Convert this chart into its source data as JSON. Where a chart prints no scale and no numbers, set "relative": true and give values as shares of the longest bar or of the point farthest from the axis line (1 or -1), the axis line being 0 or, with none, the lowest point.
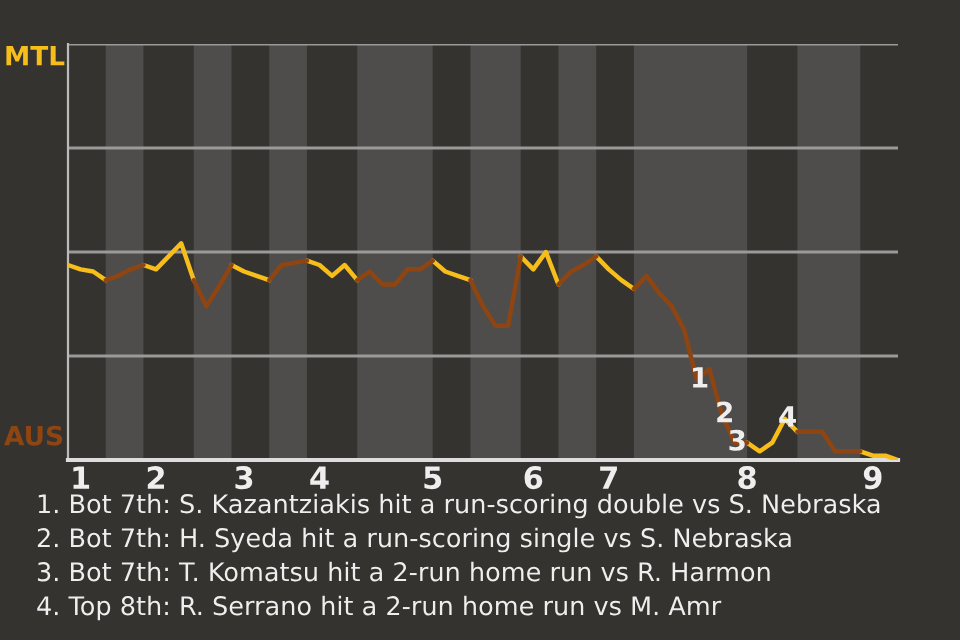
{
  "chart_data": {
    "type": "line",
    "relative": true,
    "categories": [
      null,
      "1",
      null,
      null,
      null,
      null,
      null,
      "2",
      null,
      null,
      null,
      null,
      null,
      null,
      "3",
      null,
      null,
      null,
      null,
      null,
      "4",
      null,
      null,
      null,
      null,
      null,
      null,
      null,
      null,
      "5",
      null,
      null,
      null,
      null,
      null,
      null,
      null,
      "6",
      null,
      null,
      null,
      null,
      null,
      "7",
      null,
      null,
      null,
      null,
      null,
      null,
      null,
      null,
      null,
      null,
      "8",
      null,
      null,
      null,
      null,
      null,
      null,
      null,
      null,
      null,
      "9",
      null,
      null
    ],
    "series": [
      {
        "color": "#f7bd1a",
        "values": [
          0.9,
          0.88,
          0.87,
          0.83,
          null,
          null,
          0.9,
          0.88,
          0.94,
          1,
          0.83,
          null,
          null,
          0.9,
          0.87,
          0.85,
          0.83,
          null,
          null,
          0.92,
          0.9,
          0.85,
          0.9,
          0.83,
          null,
          null,
          null,
          null,
          null,
          0.92,
          0.87,
          0.85,
          0.83,
          null,
          null,
          null,
          0.94,
          0.88,
          0.96,
          0.81,
          null,
          null,
          0.94,
          0.88,
          0.83,
          0.79,
          null,
          null,
          null,
          null,
          null,
          null,
          null,
          null,
          0.08,
          0.04,
          0.08,
          0.19,
          0.13,
          null,
          null,
          null,
          null,
          0.04,
          0.02,
          0.02,
          0
        ]
      },
      {
        "color": "#8f4512",
        "values": [
          null,
          null,
          null,
          0.83,
          0.85,
          0.88,
          0.9,
          null,
          null,
          null,
          0.83,
          0.71,
          0.8,
          0.9,
          null,
          null,
          0.83,
          0.9,
          0.91,
          0.92,
          null,
          null,
          null,
          0.83,
          0.87,
          0.81,
          0.81,
          0.88,
          0.88,
          0.92,
          null,
          null,
          0.83,
          0.71,
          0.62,
          0.62,
          0.94,
          null,
          null,
          0.81,
          0.87,
          0.9,
          0.94,
          null,
          null,
          0.79,
          0.85,
          0.77,
          0.71,
          0.6,
          0.37,
          0.42,
          0.21,
          0.08,
          0.08,
          null,
          null,
          null,
          0.13,
          0.13,
          0.13,
          0.04,
          0.04,
          0.04,
          null,
          null,
          null
        ]
      }
    ],
    "ref_lines": [
      {
        "axis": "y",
        "value": 0.48,
        "color": "#9a9a9a"
      },
      {
        "axis": "y",
        "value": 0.96,
        "color": "#9a9a9a"
      },
      {
        "axis": "y",
        "value": 1.44,
        "color": "#9a9a9a"
      },
      {
        "axis": "y",
        "value": 1.92,
        "color": "#9a9a9a"
      }
    ],
    "annotations": [
      "MTL",
      "AUS",
      {
        "text": "1",
        "y": 0.37
      },
      {
        "text": "2",
        "y": 0.21
      },
      {
        "text": "3",
        "y": 0.08
      },
      {
        "text": "4",
        "y": 0.19
      },
      "1. Bot 7th: S. Kazantziakis hit a run-scoring double vs S. Nebraska",
      "2. Bot 7th: H. Syeda hit a run-scoring single vs S. Nebraska",
      "3. Bot 7th: T. Komatsu hit a 2-run home run vs R. Harmon",
      "4. Top 8th: R. Serrano hit a 2-run home run vs M. Amr"
    ]
  }
}
